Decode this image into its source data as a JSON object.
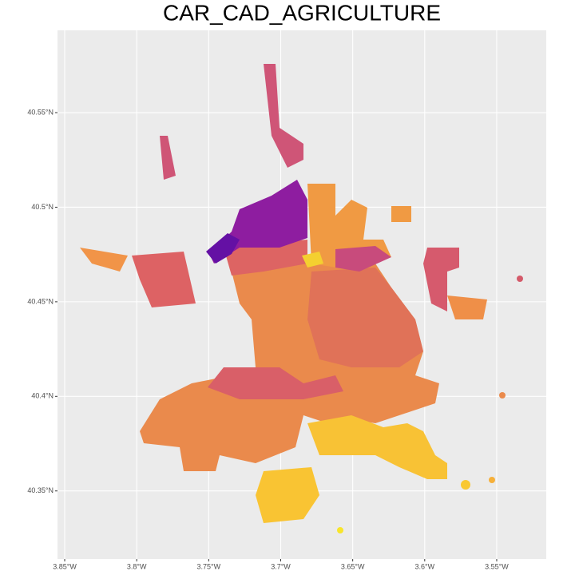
{
  "chart_data": {
    "type": "map",
    "title": "CAR_CAD_AGRICULTURE",
    "xlim": [
      -3.855,
      -3.5156
    ],
    "ylim": [
      40.314,
      40.5935
    ],
    "xticks": [
      {
        "value": -3.85,
        "label": "3.85°W"
      },
      {
        "value": -3.8,
        "label": "3.8°W"
      },
      {
        "value": -3.75,
        "label": "3.75°W"
      },
      {
        "value": -3.7,
        "label": "3.7°W"
      },
      {
        "value": -3.65,
        "label": "3.65°W"
      },
      {
        "value": -3.6,
        "label": "3.6°W"
      },
      {
        "value": -3.55,
        "label": "3.55°W"
      }
    ],
    "yticks": [
      {
        "value": 40.35,
        "label": "40.35°N"
      },
      {
        "value": 40.4,
        "label": "40.4°N"
      },
      {
        "value": 40.45,
        "label": "40.45°N"
      },
      {
        "value": 40.5,
        "label": "40.5°N"
      },
      {
        "value": 40.55,
        "label": "40.55°N"
      }
    ],
    "grid": true
  }
}
